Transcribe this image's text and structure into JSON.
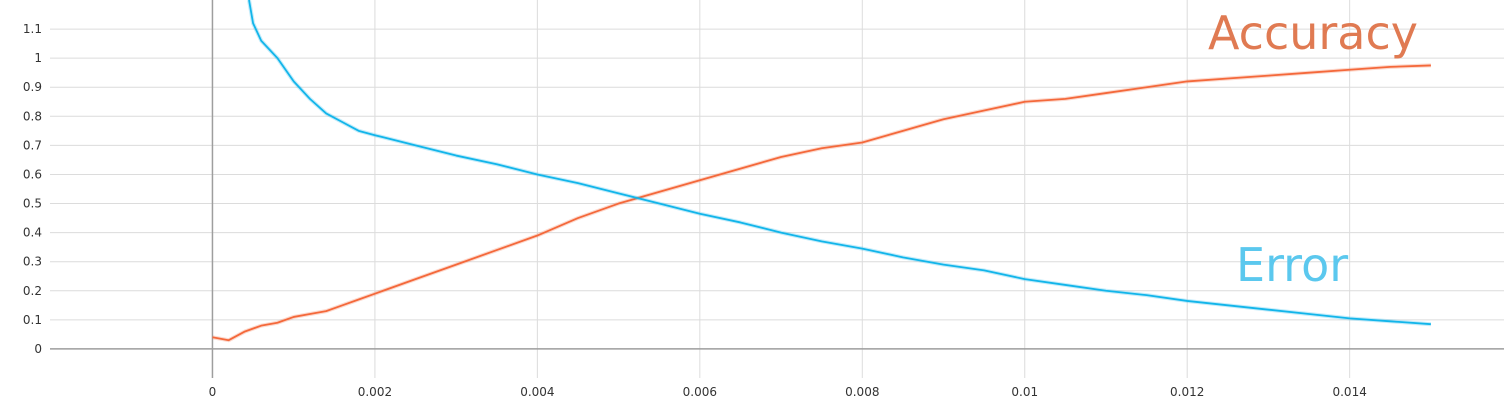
{
  "chart_data": {
    "type": "line",
    "xlim": [
      -0.002,
      0.0159
    ],
    "ylim": [
      -0.1,
      1.2
    ],
    "x_ticks": [
      0,
      0.002,
      0.004,
      0.006,
      0.008,
      0.01,
      0.012,
      0.014
    ],
    "x_tick_labels": [
      "0",
      "0.002",
      "0.004",
      "0.006",
      "0.008",
      "0.01",
      "0.012",
      "0.014"
    ],
    "y_ticks": [
      0,
      0.1,
      0.2,
      0.3,
      0.4,
      0.5,
      0.6,
      0.7,
      0.8,
      0.9,
      1,
      1.1
    ],
    "y_tick_labels": [
      "0",
      "0.1",
      "0.2",
      "0.3",
      "0.4",
      "0.5",
      "0.6",
      "0.7",
      "0.8",
      "0.9",
      "1",
      "1.1"
    ],
    "grid": true,
    "series": [
      {
        "name": "Accuracy",
        "color": "#f4683a",
        "label_color": "#e07a52",
        "x": [
          0,
          0.0002,
          0.0004,
          0.0006,
          0.0008,
          0.001,
          0.0012,
          0.0014,
          0.0016,
          0.0018,
          0.002,
          0.0025,
          0.003,
          0.0035,
          0.004,
          0.0045,
          0.005,
          0.0055,
          0.006,
          0.0065,
          0.007,
          0.0075,
          0.008,
          0.0085,
          0.009,
          0.0095,
          0.01,
          0.0105,
          0.011,
          0.0115,
          0.012,
          0.0125,
          0.013,
          0.0135,
          0.014,
          0.0145,
          0.015
        ],
        "y": [
          0.04,
          0.03,
          0.06,
          0.08,
          0.09,
          0.11,
          0.12,
          0.13,
          0.15,
          0.17,
          0.19,
          0.24,
          0.29,
          0.34,
          0.39,
          0.45,
          0.5,
          0.54,
          0.58,
          0.62,
          0.66,
          0.69,
          0.71,
          0.75,
          0.79,
          0.82,
          0.85,
          0.86,
          0.88,
          0.9,
          0.92,
          0.93,
          0.94,
          0.95,
          0.96,
          0.97,
          0.975
        ]
      },
      {
        "name": "Error",
        "color": "#12b5ea",
        "label_color": "#5bc8ee",
        "x": [
          0.00045,
          0.0005,
          0.0006,
          0.0008,
          0.001,
          0.0012,
          0.0014,
          0.0016,
          0.0018,
          0.002,
          0.0025,
          0.003,
          0.0035,
          0.004,
          0.0045,
          0.005,
          0.0055,
          0.006,
          0.0065,
          0.007,
          0.0075,
          0.008,
          0.0085,
          0.009,
          0.0095,
          0.01,
          0.0105,
          0.011,
          0.0115,
          0.012,
          0.0125,
          0.013,
          0.0135,
          0.014,
          0.0145,
          0.015
        ],
        "y": [
          1.2,
          1.12,
          1.06,
          1.0,
          0.92,
          0.86,
          0.81,
          0.78,
          0.75,
          0.735,
          0.7,
          0.665,
          0.635,
          0.6,
          0.57,
          0.535,
          0.5,
          0.465,
          0.435,
          0.4,
          0.37,
          0.345,
          0.315,
          0.29,
          0.27,
          0.24,
          0.22,
          0.2,
          0.185,
          0.165,
          0.15,
          0.135,
          0.12,
          0.105,
          0.095,
          0.085
        ]
      }
    ]
  }
}
